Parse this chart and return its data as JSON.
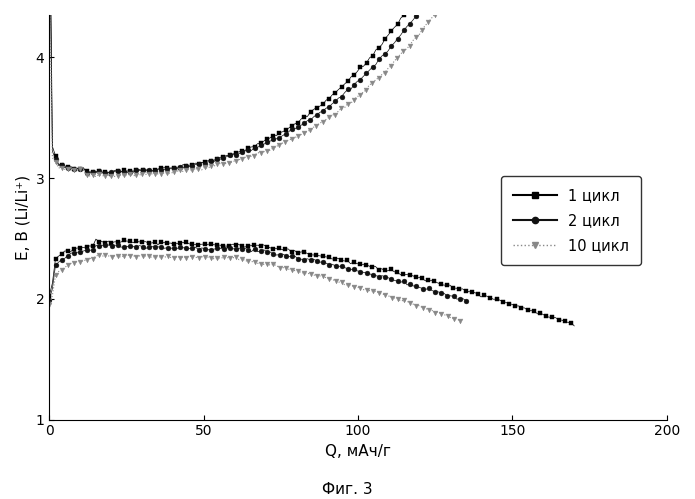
{
  "title": "",
  "xlabel": "Q, мАч/г",
  "ylabel": "E, В (Li/Li⁺)",
  "xlim": [
    0,
    200
  ],
  "ylim": [
    1,
    4.35
  ],
  "xticks": [
    0,
    50,
    100,
    150,
    200
  ],
  "yticks": [
    1,
    2,
    3,
    4
  ],
  "caption": "Фиг. 3",
  "legend": [
    "1 цикл",
    "2 цикл",
    "10 цикл"
  ],
  "background_color": "#ffffff",
  "series1_color": "#000000",
  "series2_color": "#111111",
  "series10_color": "#888888"
}
